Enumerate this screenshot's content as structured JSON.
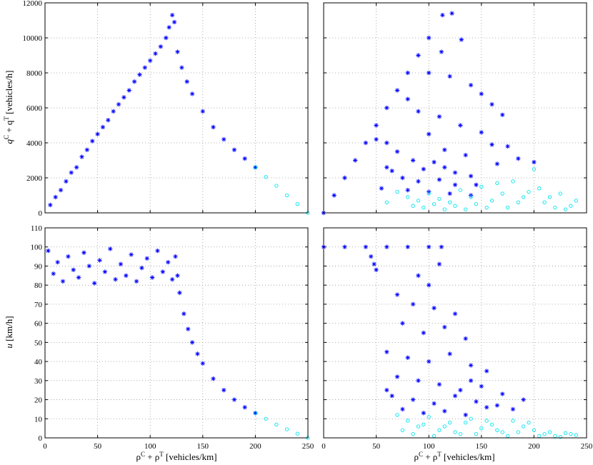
{
  "figure": {
    "xlabel_left": {
      "rho": "ρ",
      "supC": "C",
      "plus": " + ρ",
      "supT": "T",
      "units": " [vehicles/km]"
    },
    "xlabel_right": {
      "rho": "ρ",
      "supC": "C",
      "plus": " + ρ",
      "supT": "T",
      "units": " [vehicles/km]"
    },
    "ylabel_top": {
      "q": "q",
      "supC": "C",
      "plus": " + q",
      "supT": "T",
      "units": " [vehicles/h]"
    },
    "ylabel_bottom": {
      "u": "u",
      "units": " [km/h]"
    }
  },
  "colors": {
    "blue": "#0000ff",
    "cyan": "#00e5ee"
  },
  "chart_data": [
    {
      "type": "scatter",
      "panel": "top-left",
      "xlim": [
        0,
        250
      ],
      "ylim": [
        0,
        12000
      ],
      "xticks": [],
      "yticks": [
        0,
        2000,
        4000,
        6000,
        8000,
        10000,
        12000
      ],
      "grid": true,
      "series": [
        {
          "marker": "star",
          "color": "blue",
          "points": [
            [
              5,
              450
            ],
            [
              10,
              900
            ],
            [
              15,
              1300
            ],
            [
              20,
              1800
            ],
            [
              25,
              2300
            ],
            [
              30,
              2600
            ],
            [
              35,
              3200
            ],
            [
              40,
              3600
            ],
            [
              45,
              4100
            ],
            [
              50,
              4500
            ],
            [
              55,
              4900
            ],
            [
              60,
              5300
            ],
            [
              65,
              5800
            ],
            [
              70,
              6200
            ],
            [
              75,
              6600
            ],
            [
              80,
              7000
            ],
            [
              85,
              7500
            ],
            [
              90,
              7900
            ],
            [
              95,
              8300
            ],
            [
              100,
              8700
            ],
            [
              105,
              9100
            ],
            [
              110,
              9500
            ],
            [
              115,
              10000
            ],
            [
              118,
              10600
            ],
            [
              121,
              11300
            ],
            [
              123,
              10900
            ],
            [
              126,
              9200
            ],
            [
              130,
              8300
            ],
            [
              135,
              7500
            ],
            [
              140,
              6800
            ],
            [
              150,
              5800
            ],
            [
              160,
              4900
            ],
            [
              170,
              4200
            ],
            [
              180,
              3600
            ],
            [
              190,
              3100
            ],
            [
              200,
              2600
            ]
          ]
        },
        {
          "marker": "circle",
          "color": "cyan",
          "points": [
            [
              200,
              2600
            ],
            [
              210,
              2050
            ],
            [
              220,
              1550
            ],
            [
              230,
              1000
            ],
            [
              240,
              500
            ],
            [
              250,
              0
            ]
          ]
        }
      ]
    },
    {
      "type": "scatter",
      "panel": "top-right",
      "xlim": [
        0,
        250
      ],
      "ylim": [
        0,
        12000
      ],
      "xticks": [],
      "yticks": [],
      "grid": true,
      "series": [
        {
          "marker": "star",
          "color": "blue",
          "points": [
            [
              0,
              0
            ],
            [
              10,
              1000
            ],
            [
              20,
              2000
            ],
            [
              30,
              3000
            ],
            [
              40,
              4000
            ],
            [
              50,
              5000
            ],
            [
              60,
              6000
            ],
            [
              70,
              7000
            ],
            [
              80,
              8000
            ],
            [
              90,
              9000
            ],
            [
              100,
              10000
            ],
            [
              113,
              11300
            ],
            [
              122,
              11400
            ],
            [
              112,
              9200
            ],
            [
              131,
              9900
            ],
            [
              100,
              8000
            ],
            [
              120,
              7800
            ],
            [
              140,
              7300
            ],
            [
              150,
              6800
            ],
            [
              160,
              6200
            ],
            [
              170,
              5600
            ],
            [
              80,
              6500
            ],
            [
              90,
              5800
            ],
            [
              110,
              5500
            ],
            [
              130,
              5000
            ],
            [
              150,
              4600
            ],
            [
              160,
              3900
            ],
            [
              175,
              3800
            ],
            [
              185,
              3100
            ],
            [
              200,
              2900
            ],
            [
              60,
              4000
            ],
            [
              70,
              3500
            ],
            [
              85,
              3000
            ],
            [
              95,
              2500
            ],
            [
              105,
              2900
            ],
            [
              115,
              2600
            ],
            [
              125,
              2300
            ],
            [
              140,
              2100
            ],
            [
              65,
              2400
            ],
            [
              75,
              2000
            ],
            [
              90,
              1800
            ],
            [
              110,
              1900
            ],
            [
              125,
              1600
            ],
            [
              145,
              1600
            ],
            [
              55,
              1400
            ],
            [
              80,
              1300
            ],
            [
              100,
              1200
            ],
            [
              120,
              1100
            ],
            [
              140,
              1000
            ],
            [
              50,
              4200
            ],
            [
              60,
              2600
            ],
            [
              100,
              4500
            ],
            [
              115,
              3600
            ],
            [
              135,
              3300
            ],
            [
              165,
              2800
            ]
          ]
        },
        {
          "marker": "circle",
          "color": "cyan",
          "points": [
            [
              70,
              1200
            ],
            [
              80,
              900
            ],
            [
              90,
              700
            ],
            [
              100,
              1100
            ],
            [
              110,
              800
            ],
            [
              120,
              600
            ],
            [
              130,
              1300
            ],
            [
              140,
              900
            ],
            [
              150,
              1500
            ],
            [
              160,
              700
            ],
            [
              170,
              1100
            ],
            [
              180,
              1800
            ],
            [
              190,
              900
            ],
            [
              200,
              2500
            ],
            [
              205,
              1400
            ],
            [
              210,
              600
            ],
            [
              220,
              300
            ],
            [
              225,
              1100
            ],
            [
              230,
              200
            ],
            [
              240,
              700
            ],
            [
              60,
              600
            ],
            [
              85,
              400
            ],
            [
              95,
              300
            ],
            [
              105,
              500
            ],
            [
              115,
              200
            ],
            [
              125,
              400
            ],
            [
              135,
              200
            ],
            [
              145,
              500
            ],
            [
              155,
              300
            ],
            [
              165,
              1700
            ],
            [
              175,
              300
            ],
            [
              185,
              600
            ],
            [
              195,
              1200
            ],
            [
              215,
              900
            ],
            [
              235,
              400
            ]
          ]
        }
      ]
    },
    {
      "type": "scatter",
      "panel": "bottom-left",
      "xlim": [
        0,
        250
      ],
      "ylim": [
        0,
        110
      ],
      "xticks": [
        0,
        50,
        100,
        150,
        200,
        250
      ],
      "yticks": [
        0,
        10,
        20,
        30,
        40,
        50,
        60,
        70,
        80,
        90,
        100,
        110
      ],
      "grid": true,
      "series": [
        {
          "marker": "star",
          "color": "blue",
          "points": [
            [
              3,
              98
            ],
            [
              8,
              86
            ],
            [
              12,
              92
            ],
            [
              17,
              82
            ],
            [
              22,
              95
            ],
            [
              27,
              88
            ],
            [
              32,
              84
            ],
            [
              37,
              97
            ],
            [
              42,
              90
            ],
            [
              47,
              81
            ],
            [
              52,
              93
            ],
            [
              57,
              87
            ],
            [
              62,
              99
            ],
            [
              67,
              83
            ],
            [
              72,
              91
            ],
            [
              77,
              85
            ],
            [
              82,
              96
            ],
            [
              87,
              82
            ],
            [
              92,
              89
            ],
            [
              97,
              94
            ],
            [
              102,
              84
            ],
            [
              107,
              98
            ],
            [
              112,
              87
            ],
            [
              117,
              92
            ],
            [
              121,
              83
            ],
            [
              124,
              95
            ],
            [
              126,
              85
            ],
            [
              128,
              76
            ],
            [
              132,
              65
            ],
            [
              136,
              57
            ],
            [
              140,
              50
            ],
            [
              145,
              44
            ],
            [
              150,
              39
            ],
            [
              160,
              31
            ],
            [
              170,
              25
            ],
            [
              180,
              20
            ],
            [
              190,
              16
            ],
            [
              200,
              13
            ]
          ]
        },
        {
          "marker": "circle",
          "color": "cyan",
          "points": [
            [
              200,
              13
            ],
            [
              210,
              10
            ],
            [
              220,
              7
            ],
            [
              230,
              4.5
            ],
            [
              240,
              2.2
            ],
            [
              250,
              0
            ]
          ]
        }
      ]
    },
    {
      "type": "scatter",
      "panel": "bottom-right",
      "xlim": [
        0,
        250
      ],
      "ylim": [
        0,
        110
      ],
      "xticks": [
        0,
        50,
        100,
        150,
        200,
        250
      ],
      "yticks": [],
      "grid": true,
      "series": [
        {
          "marker": "star",
          "color": "blue",
          "points": [
            [
              0,
              100
            ],
            [
              20,
              100
            ],
            [
              40,
              100
            ],
            [
              60,
              100
            ],
            [
              80,
              100
            ],
            [
              100,
              100
            ],
            [
              112,
              100
            ],
            [
              45,
              95
            ],
            [
              48,
              91
            ],
            [
              50,
              88
            ],
            [
              90,
              85
            ],
            [
              100,
              80
            ],
            [
              110,
              91
            ],
            [
              70,
              75
            ],
            [
              85,
              70
            ],
            [
              105,
              68
            ],
            [
              125,
              65
            ],
            [
              75,
              60
            ],
            [
              95,
              55
            ],
            [
              115,
              58
            ],
            [
              135,
              52
            ],
            [
              60,
              45
            ],
            [
              80,
              42
            ],
            [
              100,
              40
            ],
            [
              120,
              44
            ],
            [
              140,
              38
            ],
            [
              155,
              35
            ],
            [
              70,
              32
            ],
            [
              90,
              30
            ],
            [
              110,
              28
            ],
            [
              130,
              25
            ],
            [
              150,
              27
            ],
            [
              170,
              23
            ],
            [
              65,
              22
            ],
            [
              85,
              20
            ],
            [
              105,
              18
            ],
            [
              125,
              22
            ],
            [
              145,
              19
            ],
            [
              165,
              17
            ],
            [
              180,
              15
            ],
            [
              75,
              15
            ],
            [
              95,
              13
            ],
            [
              115,
              14
            ],
            [
              135,
              12
            ],
            [
              155,
              16
            ],
            [
              190,
              20
            ],
            [
              60,
              25
            ],
            [
              140,
              30
            ]
          ]
        },
        {
          "marker": "circle",
          "color": "cyan",
          "points": [
            [
              70,
              12
            ],
            [
              80,
              9
            ],
            [
              90,
              6
            ],
            [
              100,
              11
            ],
            [
              110,
              4
            ],
            [
              120,
              8
            ],
            [
              130,
              2
            ],
            [
              140,
              10
            ],
            [
              150,
              5
            ],
            [
              160,
              7
            ],
            [
              170,
              3
            ],
            [
              180,
              9
            ],
            [
              190,
              6
            ],
            [
              200,
              4
            ],
            [
              210,
              2
            ],
            [
              220,
              1
            ],
            [
              230,
              2.5
            ],
            [
              240,
              1.5
            ],
            [
              75,
              4
            ],
            [
              85,
              2
            ],
            [
              95,
              7
            ],
            [
              105,
              1
            ],
            [
              115,
              6
            ],
            [
              125,
              3
            ],
            [
              135,
              8
            ],
            [
              145,
              2
            ],
            [
              155,
              9
            ],
            [
              165,
              4
            ],
            [
              175,
              1
            ],
            [
              185,
              3
            ],
            [
              195,
              8
            ],
            [
              205,
              1
            ],
            [
              215,
              3
            ],
            [
              225,
              0.5
            ],
            [
              235,
              2
            ]
          ]
        }
      ]
    }
  ]
}
